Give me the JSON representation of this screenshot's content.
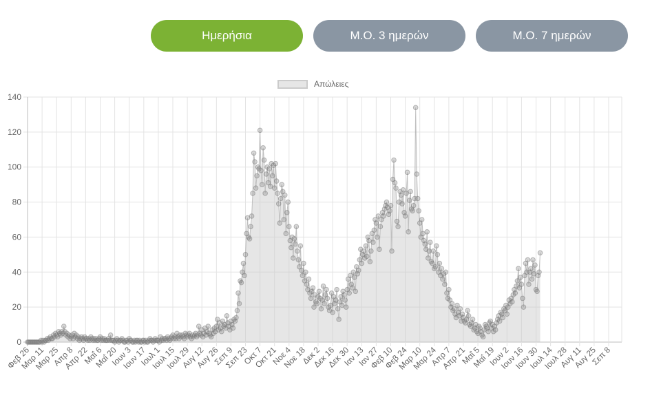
{
  "toolbar": {
    "buttons": [
      {
        "label": "Ημερήσια",
        "active": true,
        "color": "#7cb234"
      },
      {
        "label": "Μ.Ο. 3 ημερών",
        "active": false,
        "color": "#8a96a3"
      },
      {
        "label": "Μ.Ο. 7 ημερών",
        "active": false,
        "color": "#8a96a3"
      }
    ]
  },
  "legend": {
    "label": "Απώλειες"
  },
  "chart_data": {
    "type": "line",
    "title": "",
    "xlabel": "",
    "ylabel": "",
    "ylim": [
      0,
      140
    ],
    "yticks": [
      0,
      20,
      40,
      60,
      80,
      100,
      120,
      140
    ],
    "grid": true,
    "legend_position": "top",
    "fill": true,
    "series_name": "Απώλειες",
    "start_date": "Φεβ 26",
    "xtick_interval_days": 14,
    "xticks": [
      "Φεβ 26",
      "Μαρ 11",
      "Μαρ 25",
      "Απρ 8",
      "Απρ 22",
      "Μαΐ 6",
      "Μαΐ 20",
      "Ιουν 3",
      "Ιουν 17",
      "Ιουλ 1",
      "Ιουλ 15",
      "Ιουλ 29",
      "Αυγ 12",
      "Αυγ 26",
      "Σεπ 9",
      "Σεπ 23",
      "Οκτ 7",
      "Οκτ 21",
      "Νοε 4",
      "Νοε 18",
      "Δεκ 2",
      "Δεκ 16",
      "Δεκ 30",
      "Ιαν 13",
      "Ιαν 27",
      "Φεβ 10",
      "Φεβ 24",
      "Μαρ 10",
      "Μαρ 24",
      "Απρ 7",
      "Απρ 21",
      "Μαΐ 5",
      "Μαΐ 19",
      "Ιουν 2",
      "Ιουν 16",
      "Ιουν 30",
      "Ιουλ 14",
      "Ιουλ 28",
      "Αυγ 11",
      "Αυγ 25",
      "Σεπ 8"
    ],
    "values": [
      0,
      0,
      0,
      0,
      0,
      0,
      0,
      0,
      0,
      0,
      0,
      0,
      0,
      1,
      0,
      1,
      0,
      1,
      1,
      2,
      1,
      2,
      3,
      2,
      2,
      4,
      3,
      5,
      4,
      3,
      6,
      5,
      4,
      6,
      5,
      9,
      6,
      4,
      5,
      3,
      4,
      2,
      3,
      4,
      2,
      5,
      3,
      4,
      2,
      3,
      1,
      2,
      3,
      2,
      1,
      3,
      2,
      2,
      1,
      2,
      1,
      3,
      2,
      1,
      2,
      1,
      2,
      1,
      1,
      2,
      3,
      1,
      2,
      1,
      2,
      1,
      1,
      1,
      2,
      1,
      4,
      1,
      1,
      1,
      0,
      1,
      2,
      1,
      0,
      1,
      1,
      2,
      1,
      0,
      0,
      1,
      1,
      0,
      2,
      1,
      1,
      0,
      0,
      1,
      0,
      1,
      1,
      0,
      1,
      0,
      0,
      1,
      1,
      0,
      1,
      0,
      0,
      1,
      2,
      1,
      1,
      0,
      1,
      2,
      1,
      1,
      1,
      0,
      3,
      1,
      2,
      1,
      2,
      2,
      1,
      3,
      2,
      1,
      2,
      3,
      4,
      2,
      3,
      2,
      5,
      3,
      2,
      4,
      3,
      4,
      3,
      2,
      5,
      4,
      3,
      4,
      5,
      3,
      2,
      4,
      3,
      4,
      5,
      3,
      4,
      9,
      5,
      4,
      7,
      3,
      5,
      8,
      4,
      6,
      9,
      5,
      4,
      3,
      7,
      5,
      8,
      6,
      9,
      13,
      7,
      11,
      8,
      6,
      12,
      9,
      10,
      8,
      15,
      11,
      9,
      7,
      12,
      10,
      8,
      13,
      12,
      14,
      18,
      28,
      22,
      35,
      34,
      40,
      45,
      38,
      50,
      62,
      71,
      60,
      59,
      66,
      72,
      85,
      108,
      103,
      88,
      95,
      100,
      99,
      121,
      98,
      90,
      111,
      104,
      85,
      96,
      100,
      91,
      99,
      89,
      102,
      95,
      101,
      88,
      102,
      92,
      85,
      79,
      68,
      82,
      90,
      86,
      70,
      84,
      62,
      74,
      80,
      66,
      58,
      54,
      60,
      48,
      59,
      56,
      66,
      52,
      47,
      43,
      55,
      41,
      38,
      45,
      35,
      40,
      33,
      30,
      36,
      28,
      25,
      29,
      31,
      20,
      27,
      23,
      22,
      26,
      29,
      25,
      19,
      24,
      32,
      22,
      27,
      30,
      25,
      20,
      18,
      21,
      28,
      17,
      26,
      22,
      24,
      30,
      19,
      13,
      23,
      26,
      21,
      29,
      27,
      24,
      20,
      30,
      36,
      28,
      38,
      33,
      31,
      40,
      37,
      29,
      43,
      39,
      41,
      47,
      53,
      45,
      50,
      52,
      48,
      55,
      49,
      60,
      58,
      46,
      52,
      62,
      57,
      64,
      70,
      68,
      60,
      72,
      53,
      66,
      70,
      74,
      72,
      76,
      78,
      80,
      77,
      73,
      75,
      78,
      52,
      93,
      104,
      91,
      88,
      69,
      66,
      80,
      86,
      84,
      79,
      87,
      74,
      72,
      85,
      97,
      63,
      81,
      86,
      76,
      75,
      78,
      82,
      134,
      96,
      82,
      75,
      68,
      60,
      70,
      62,
      58,
      56,
      53,
      63,
      48,
      52,
      57,
      46,
      45,
      52,
      42,
      43,
      55,
      50,
      40,
      45,
      38,
      42,
      36,
      39,
      33,
      40,
      28,
      25,
      30,
      24,
      20,
      22,
      18,
      19,
      16,
      14,
      21,
      17,
      15,
      19,
      12,
      16,
      14,
      12,
      11,
      13,
      18,
      15,
      10,
      9,
      11,
      13,
      7,
      8,
      10,
      6,
      5,
      9,
      8,
      6,
      4,
      3,
      7,
      10,
      9,
      8,
      6,
      11,
      12,
      8,
      10,
      6,
      9,
      7,
      11,
      13,
      15,
      12,
      17,
      16,
      14,
      19,
      18,
      21,
      16,
      20,
      24,
      22,
      25,
      23,
      27,
      30,
      28,
      32,
      35,
      42,
      31,
      37,
      33,
      25,
      20,
      38,
      45,
      40,
      47,
      33,
      40,
      42,
      36,
      47,
      39,
      44,
      30,
      29,
      38,
      40,
      51
    ]
  }
}
